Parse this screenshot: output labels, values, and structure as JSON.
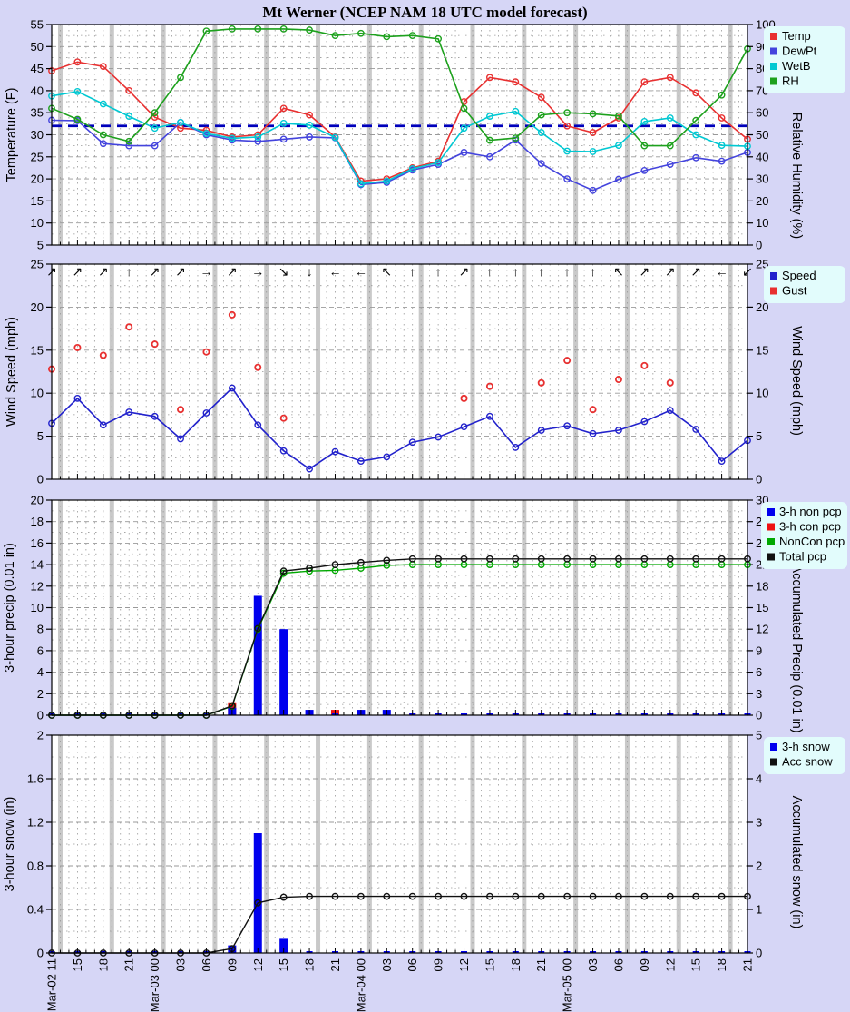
{
  "title": "Mt Werner (NCEP NAM 18 UTC model forecast)",
  "colors": {
    "background": "#d6d6f6",
    "plot_bg": "#ffffff",
    "band": "#c9c9c9",
    "grid": "#999999",
    "legend_bg": "#e2fcfc",
    "freezing_line": "#0000bb",
    "temp": "#e83030",
    "dewpt": "#4444dd",
    "wetb": "#00c8d2",
    "rh": "#1da11d",
    "speed": "#2222cc",
    "gust": "#e83030",
    "non_pcp_bar": "#0000ee",
    "con_pcp_bar": "#ee1111",
    "noncon_acc": "#00a800",
    "total_acc": "#111111",
    "snow_bar": "#0000ee",
    "acc_snow": "#111111"
  },
  "x_axis": {
    "hours_between_points": 3,
    "labels": [
      "Mar-02 11",
      "15",
      "18",
      "21",
      "Mar-03 00",
      "03",
      "06",
      "09",
      "12",
      "15",
      "18",
      "21",
      "Mar-04 00",
      "03",
      "06",
      "09",
      "12",
      "15",
      "18",
      "21",
      "Mar-05 00",
      "03",
      "06",
      "09",
      "12",
      "15",
      "18",
      "21"
    ]
  },
  "chart_data": [
    {
      "id": "temperature",
      "type": "line",
      "left_axis": {
        "label": "Temperature (F)",
        "min": 5,
        "max": 55,
        "tick_step": 5
      },
      "right_axis": {
        "label": "Relative Humidity (%)",
        "min": 0,
        "max": 100,
        "tick_step": 10
      },
      "freezing_line_f": 32,
      "legend": [
        {
          "label": "Temp",
          "color_key": "temp"
        },
        {
          "label": "DewPt",
          "color_key": "dewpt"
        },
        {
          "label": "WetB",
          "color_key": "wetb"
        },
        {
          "label": "RH",
          "color_key": "rh"
        }
      ],
      "series": [
        {
          "name": "Temp",
          "axis": "left",
          "color_key": "temp",
          "values": [
            44.5,
            46.5,
            45.5,
            40,
            34,
            31.5,
            31,
            29.5,
            30,
            36,
            34.5,
            29.5,
            19.5,
            20,
            22.5,
            24,
            37.5,
            43,
            42,
            38.5,
            32,
            30.5,
            33.8,
            42,
            43,
            39.5,
            33.8,
            29
          ]
        },
        {
          "name": "DewPt",
          "axis": "left",
          "color_key": "dewpt",
          "values": [
            33.3,
            33.2,
            28,
            27.5,
            27.5,
            32.8,
            30,
            28.8,
            28.5,
            29,
            29.5,
            29.3,
            18.7,
            19.2,
            22,
            23.3,
            26,
            25,
            28.8,
            23.5,
            20,
            17.4,
            19.9,
            21.9,
            23.3,
            24.8,
            24,
            26
          ]
        },
        {
          "name": "WetB",
          "axis": "left",
          "color_key": "wetb",
          "values": [
            38.8,
            39.8,
            37,
            34.2,
            31.5,
            32.8,
            30.3,
            29.2,
            29.5,
            32.6,
            32.2,
            29.4,
            18.9,
            19.5,
            22.3,
            23.7,
            31.5,
            34.2,
            35.3,
            30.5,
            26.3,
            26.2,
            27.6,
            33,
            33.8,
            30,
            27.6,
            27.4
          ]
        },
        {
          "name": "RH",
          "axis": "right",
          "color_key": "rh",
          "values": [
            62,
            57,
            50,
            47,
            60,
            76,
            97,
            98,
            98,
            98,
            97.5,
            95,
            96,
            94.5,
            95,
            93.5,
            62,
            47.5,
            48.5,
            59,
            60,
            59.5,
            58.5,
            45,
            45,
            56.5,
            68,
            89
          ]
        }
      ]
    },
    {
      "id": "wind",
      "type": "line",
      "left_axis": {
        "label": "Wind Speed (mph)",
        "min": 0,
        "max": 25,
        "tick_step": 5
      },
      "right_axis": {
        "label": "Wind Speed (mph)",
        "min": 0,
        "max": 25,
        "tick_step": 5
      },
      "legend": [
        {
          "label": "Speed",
          "color_key": "speed"
        },
        {
          "label": "Gust",
          "color_key": "gust"
        }
      ],
      "speed": [
        6.5,
        9.4,
        6.3,
        7.8,
        7.3,
        4.7,
        7.7,
        10.6,
        6.3,
        3.3,
        1.2,
        3.2,
        2.1,
        2.6,
        4.3,
        4.9,
        6.1,
        7.3,
        3.7,
        5.7,
        6.2,
        5.3,
        5.7,
        6.7,
        8.0,
        5.8,
        2.1,
        4.5
      ],
      "gust": [
        12.8,
        15.3,
        14.4,
        17.7,
        15.7,
        8.1,
        14.8,
        19.1,
        13.0,
        7.1,
        null,
        null,
        null,
        null,
        null,
        null,
        9.4,
        10.8,
        null,
        11.2,
        13.8,
        8.1,
        11.6,
        13.2,
        11.2,
        null,
        null,
        null
      ],
      "direction_arrows": [
        "↗",
        "↗",
        "↗",
        "↑",
        "↗",
        "↗",
        "→",
        "↗",
        "→",
        "↘",
        "↓",
        "←",
        "←",
        "↖",
        "↑",
        "↑",
        "↗",
        "↑",
        "↑",
        "↑",
        "↑",
        "↑",
        "↖",
        "↗",
        "↗",
        "↗",
        "←",
        "↙"
      ]
    },
    {
      "id": "precip",
      "type": "bar",
      "left_axis": {
        "label": "3-hour precip (0.01 in)",
        "min": 0,
        "max": 20,
        "tick_step": 2
      },
      "right_axis": {
        "label": "Accumulated Precip (0.01 in)",
        "min": 0,
        "max": 30,
        "tick_step": 3
      },
      "legend": [
        {
          "label": "3-h non pcp",
          "color_key": "non_pcp_bar"
        },
        {
          "label": "3-h con pcp",
          "color_key": "con_pcp_bar"
        },
        {
          "label": "NonCon pcp",
          "color_key": "noncon_acc"
        },
        {
          "label": "Total pcp",
          "color_key": "total_acc"
        }
      ],
      "bars": [
        {
          "name": "3-h con pcp",
          "color_key": "con_pcp_bar",
          "values": [
            0,
            0,
            0,
            0,
            0,
            0,
            0,
            1.2,
            0,
            0,
            0,
            0.5,
            0,
            0,
            0,
            0,
            0,
            0,
            0,
            0,
            0,
            0,
            0,
            0,
            0,
            0,
            0,
            0
          ]
        },
        {
          "name": "3-h non pcp",
          "color_key": "non_pcp_bar",
          "values": [
            0,
            0,
            0,
            0,
            0,
            0,
            0,
            0.7,
            11.1,
            8.0,
            0.5,
            0,
            0.5,
            0.5,
            0,
            0,
            0,
            0,
            0,
            0,
            0,
            0,
            0,
            0,
            0,
            0,
            0,
            0
          ]
        }
      ],
      "lines": [
        {
          "name": "NonCon pcp",
          "axis": "right",
          "color_key": "noncon_acc",
          "values": [
            0,
            0,
            0,
            0,
            0,
            0,
            0,
            1.25,
            12,
            19.8,
            20.1,
            20.2,
            20.5,
            20.9,
            21,
            21,
            21,
            21,
            21,
            21,
            21,
            21,
            21,
            21,
            21,
            21,
            21,
            21
          ]
        },
        {
          "name": "Total pcp",
          "axis": "right",
          "color_key": "total_acc",
          "values": [
            0,
            0,
            0,
            0,
            0,
            0,
            0,
            1.3,
            12.1,
            20.1,
            20.5,
            21,
            21.3,
            21.6,
            21.8,
            21.8,
            21.8,
            21.8,
            21.8,
            21.8,
            21.8,
            21.8,
            21.8,
            21.8,
            21.8,
            21.8,
            21.8,
            21.8
          ]
        }
      ]
    },
    {
      "id": "snow",
      "type": "bar",
      "left_axis": {
        "label": "3-hour snow (in)",
        "min": 0,
        "max": 2,
        "tick_step": 0.4
      },
      "right_axis": {
        "label": "Accumulated snow (in)",
        "min": 0,
        "max": 5,
        "tick_step": 1
      },
      "legend": [
        {
          "label": "3-h snow",
          "color_key": "snow_bar"
        },
        {
          "label": "Acc snow",
          "color_key": "acc_snow"
        }
      ],
      "bars": [
        {
          "name": "3-h snow",
          "color_key": "snow_bar",
          "values": [
            0,
            0,
            0,
            0,
            0,
            0,
            0,
            0.07,
            1.1,
            0.13,
            0,
            0,
            0,
            0,
            0,
            0,
            0,
            0,
            0,
            0,
            0,
            0,
            0,
            0,
            0,
            0,
            0,
            0
          ]
        }
      ],
      "lines": [
        {
          "name": "Acc snow",
          "axis": "right",
          "color_key": "acc_snow",
          "values": [
            0,
            0,
            0,
            0,
            0,
            0,
            0,
            0.1,
            1.15,
            1.28,
            1.3,
            1.3,
            1.3,
            1.3,
            1.3,
            1.3,
            1.3,
            1.3,
            1.3,
            1.3,
            1.3,
            1.3,
            1.3,
            1.3,
            1.3,
            1.3,
            1.3,
            1.3
          ]
        }
      ]
    }
  ]
}
